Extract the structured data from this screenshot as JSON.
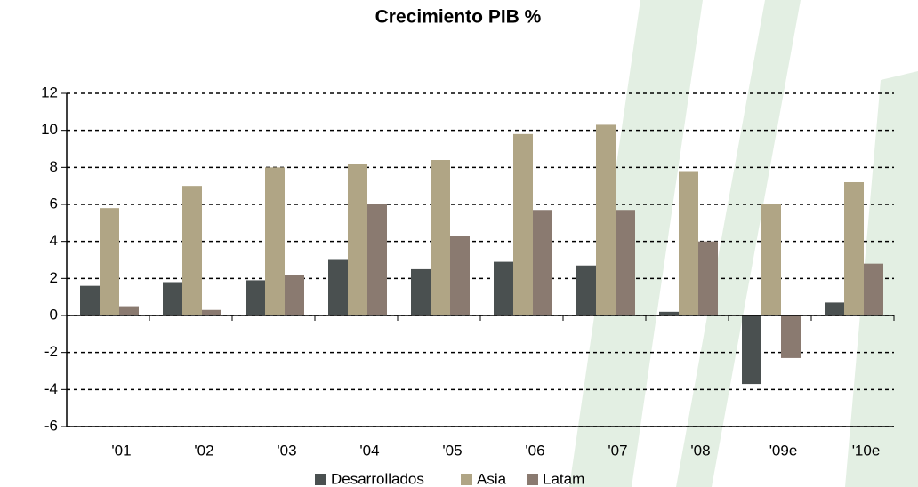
{
  "chart_data": {
    "type": "bar",
    "title": "Crecimiento PIB %",
    "categories": [
      "'01",
      "'02",
      "'03",
      "'04",
      "'05",
      "'06",
      "'07",
      "'08",
      "'09e",
      "'10e"
    ],
    "series": [
      {
        "name": "Desarrollados",
        "color": "#4a5050",
        "values": [
          1.6,
          1.8,
          1.9,
          3.0,
          2.5,
          2.9,
          2.7,
          0.2,
          -3.7,
          0.7
        ]
      },
      {
        "name": "Asia",
        "color": "#b0a585",
        "values": [
          5.8,
          7.0,
          8.0,
          8.2,
          8.4,
          9.8,
          10.3,
          7.8,
          6.0,
          7.2
        ]
      },
      {
        "name": "Latam",
        "color": "#8a7a70",
        "values": [
          0.5,
          0.3,
          2.2,
          6.0,
          4.3,
          5.7,
          5.7,
          4.0,
          -2.3,
          2.8
        ]
      }
    ],
    "ylim": [
      -6,
      12
    ],
    "yticks": [
      -6,
      -4,
      -2,
      0,
      2,
      4,
      6,
      8,
      10,
      12
    ],
    "grid": true,
    "legend": "bottom"
  }
}
